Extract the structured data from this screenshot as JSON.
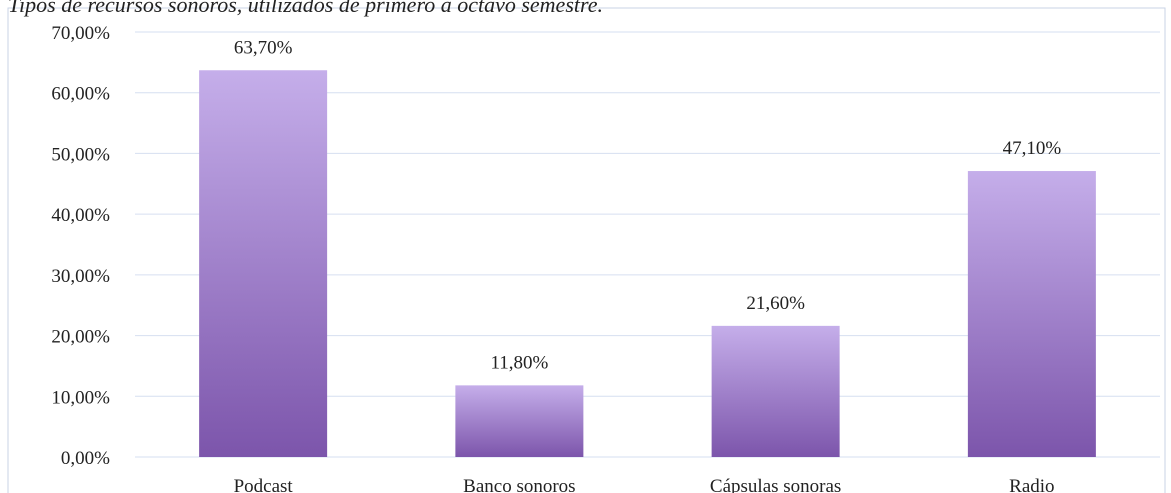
{
  "chart_data": {
    "type": "bar",
    "title": "Tipos de recursos sonoros, utilizados de primero a octavo semestre.",
    "categories": [
      "Podcast",
      "Banco sonoros",
      "Cápsulas sonoras",
      "Radio"
    ],
    "values": [
      63.7,
      11.8,
      21.6,
      47.1
    ],
    "value_labels": [
      "63,70%",
      "11,80%",
      "21,60%",
      "47,10%"
    ],
    "color": [
      "#c5aeea",
      "#7c55ab"
    ],
    "ylim": [
      0,
      70
    ],
    "yticks": [
      {
        "value": 0,
        "label": "0,00%"
      },
      {
        "value": 10,
        "label": "10,00%"
      },
      {
        "value": 20,
        "label": "20,00%"
      },
      {
        "value": 30,
        "label": "30,00%"
      },
      {
        "value": 40,
        "label": "40,00%"
      },
      {
        "value": 50,
        "label": "50,00%"
      },
      {
        "value": 60,
        "label": "60,00%"
      },
      {
        "value": 70,
        "label": "70,00%"
      }
    ],
    "grid": true
  }
}
